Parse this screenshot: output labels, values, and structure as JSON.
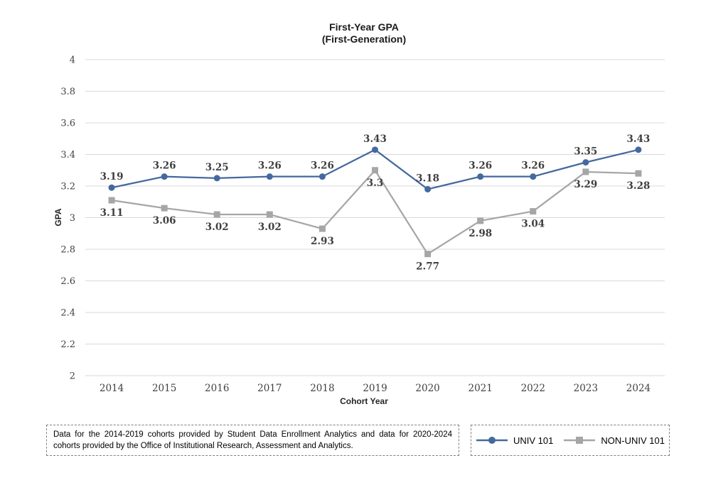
{
  "title": {
    "line1": "First-Year GPA",
    "line2": "(First-Generation)"
  },
  "chart_data": {
    "type": "line",
    "categories": [
      "2014",
      "2015",
      "2016",
      "2017",
      "2018",
      "2019",
      "2020",
      "2021",
      "2022",
      "2023",
      "2024"
    ],
    "series": [
      {
        "name": "UNIV 101",
        "color": "#44699e",
        "marker": "circle",
        "label_position": "above",
        "values": [
          3.19,
          3.26,
          3.25,
          3.26,
          3.26,
          3.43,
          3.18,
          3.26,
          3.26,
          3.35,
          3.43
        ]
      },
      {
        "name": "NON-UNIV 101",
        "color": "#a6a6a6",
        "marker": "square",
        "label_position": "below",
        "values": [
          3.11,
          3.06,
          3.02,
          3.02,
          2.93,
          3.3,
          2.77,
          2.98,
          3.04,
          3.29,
          3.28
        ]
      }
    ],
    "xlabel": "Cohort Year",
    "ylabel": "GPA",
    "ylim": [
      2,
      4
    ],
    "ytick_step": 0.2,
    "ytick_labels": [
      "2",
      "2.2",
      "2.4",
      "2.6",
      "2.8",
      "3",
      "3.2",
      "3.4",
      "3.6",
      "3.8",
      "4"
    ],
    "grid": true,
    "legend_position": "bottom-right"
  },
  "footnote": "Data for the 2014-2019 cohorts provided by Student Data Enrollment Analytics and data for 2020-2024 cohorts provided by the Office of Institutional Research, Assessment and Analytics.",
  "style": {
    "grid_color": "#d9d9d9",
    "tick_label_color": "#404040",
    "data_label_color": "#3f3f3f",
    "dash_border_color": "#7f7f7f"
  }
}
